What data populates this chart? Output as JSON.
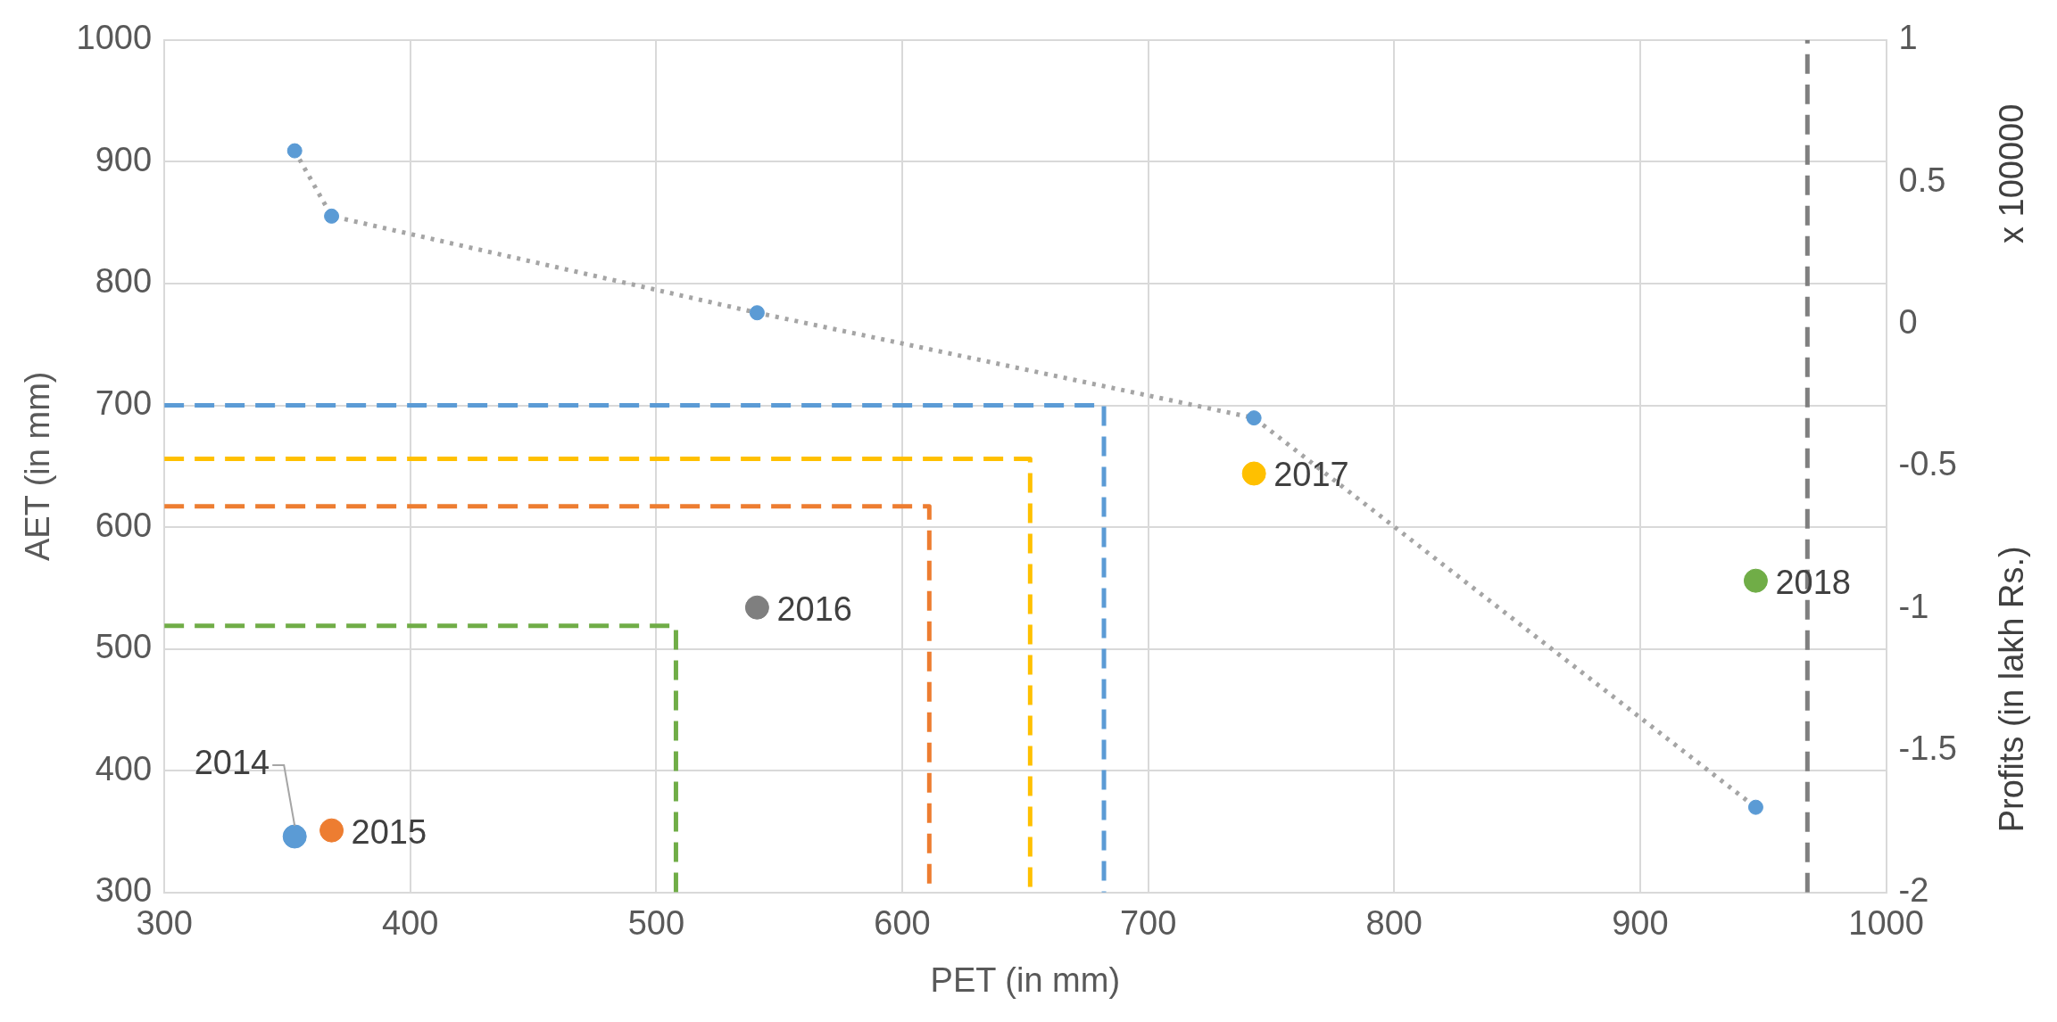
{
  "chart_data": {
    "type": "scatter",
    "xlabel": "PET (in mm)",
    "ylabel": "AET (in mm)",
    "y2label": "Profits (in lakh Rs.)",
    "annotations": [
      "x 100000"
    ],
    "xlim": [
      300,
      1000
    ],
    "xticks": [
      300,
      400,
      500,
      600,
      700,
      800,
      900,
      1000
    ],
    "ylim": [
      300,
      1000
    ],
    "yticks": [
      300,
      400,
      500,
      600,
      700,
      800,
      900,
      1000
    ],
    "y2lim": [
      -2,
      1
    ],
    "y2ticks": [
      -2,
      -1.5,
      -1,
      -0.5,
      0,
      0.5,
      1
    ],
    "grid": true,
    "legend": false,
    "series": [
      {
        "type": "line",
        "axis": "y2",
        "color": "#a5a5a5",
        "line_style": "dotted",
        "marker": "none",
        "x": [
          353,
          368,
          541,
          743,
          947
        ],
        "values": [
          0.61,
          0.38,
          0.04,
          -0.33,
          -1.7
        ]
      },
      {
        "type": "scatter",
        "axis": "y2",
        "color": "#5b9bd5",
        "marker": "circle",
        "x": [
          353,
          368,
          541,
          743,
          947
        ],
        "values": [
          0.61,
          0.38,
          0.04,
          -0.33,
          -1.7
        ]
      },
      {
        "type": "line",
        "color": "#5b9bd5",
        "line_style": "dashed",
        "marker": "none",
        "x": [
          300,
          682,
          682
        ],
        "values": [
          700,
          700,
          300
        ]
      },
      {
        "type": "line",
        "color": "#ffc000",
        "line_style": "dashed",
        "marker": "none",
        "x": [
          300,
          652,
          652
        ],
        "values": [
          656,
          656,
          300
        ]
      },
      {
        "type": "line",
        "color": "#ed7d31",
        "line_style": "dashed",
        "marker": "none",
        "x": [
          300,
          611,
          611
        ],
        "values": [
          617,
          617,
          300
        ]
      },
      {
        "type": "line",
        "color": "#70ad47",
        "line_style": "dashed",
        "marker": "none",
        "x": [
          300,
          508,
          508
        ],
        "values": [
          519,
          519,
          300
        ]
      },
      {
        "type": "line",
        "color": "#7f7f7f",
        "line_style": "dashed",
        "marker": "none",
        "x": [
          968,
          968
        ],
        "values": [
          300,
          1000
        ]
      },
      {
        "type": "scatter",
        "name": "2014",
        "color": "#5b9bd5",
        "marker": "circle",
        "x": [
          353
        ],
        "values": [
          346
        ]
      },
      {
        "type": "scatter",
        "name": "2015",
        "color": "#ed7d31",
        "marker": "circle",
        "x": [
          368
        ],
        "values": [
          351
        ]
      },
      {
        "type": "scatter",
        "name": "2016",
        "color": "#7f7f7f",
        "marker": "circle",
        "x": [
          541
        ],
        "values": [
          534
        ]
      },
      {
        "type": "scatter",
        "name": "2017",
        "color": "#ffc000",
        "marker": "circle",
        "x": [
          743
        ],
        "values": [
          644
        ]
      },
      {
        "type": "scatter",
        "name": "2018",
        "color": "#70ad47",
        "marker": "circle",
        "x": [
          947
        ],
        "values": [
          556
        ]
      }
    ]
  }
}
